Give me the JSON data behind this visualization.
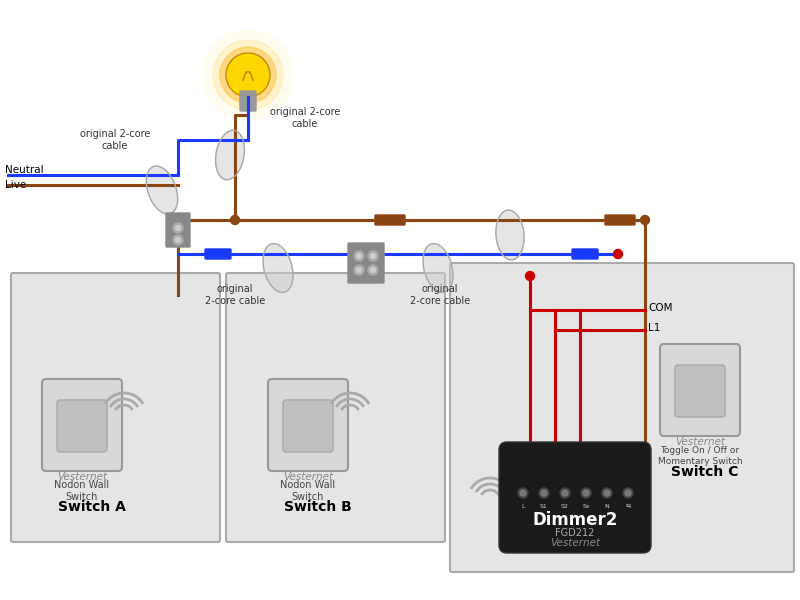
{
  "bg_color": "#ffffff",
  "panel_color": "#e5e5e5",
  "panel_border": "#aaaaaa",
  "switch_color": "#d0d0d0",
  "switch_border": "#999999",
  "dimmer_color": "#1a1a1a",
  "wire_brown": "#8B4513",
  "wire_blue": "#1a3aff",
  "wire_red": "#cc0000",
  "junction_color": "#cc0000",
  "junction_brown": "#8B4513",
  "connector_color": "#7a7a7a",
  "label_neutral": "Neutral",
  "label_live": "Live",
  "label_cable_top_left": "original 2-core\ncable",
  "label_cable_top_right": "original 2-core\ncable",
  "label_cable_mid_left": "original\n2-core cable",
  "label_cable_mid_right": "original\n2-core cable",
  "label_com": "COM",
  "label_l1": "L1",
  "label_vesternet": "Vesternet",
  "label_nodon": "Nodon Wall\nSwitch",
  "label_dimmer2": "Dimmer2",
  "label_fgd212": "FGD212",
  "label_toggle": "Toggle On / Off or\nMomentary Switch",
  "label_switch_a": "Switch A",
  "label_switch_b": "Switch B",
  "label_switch_c": "Switch C"
}
